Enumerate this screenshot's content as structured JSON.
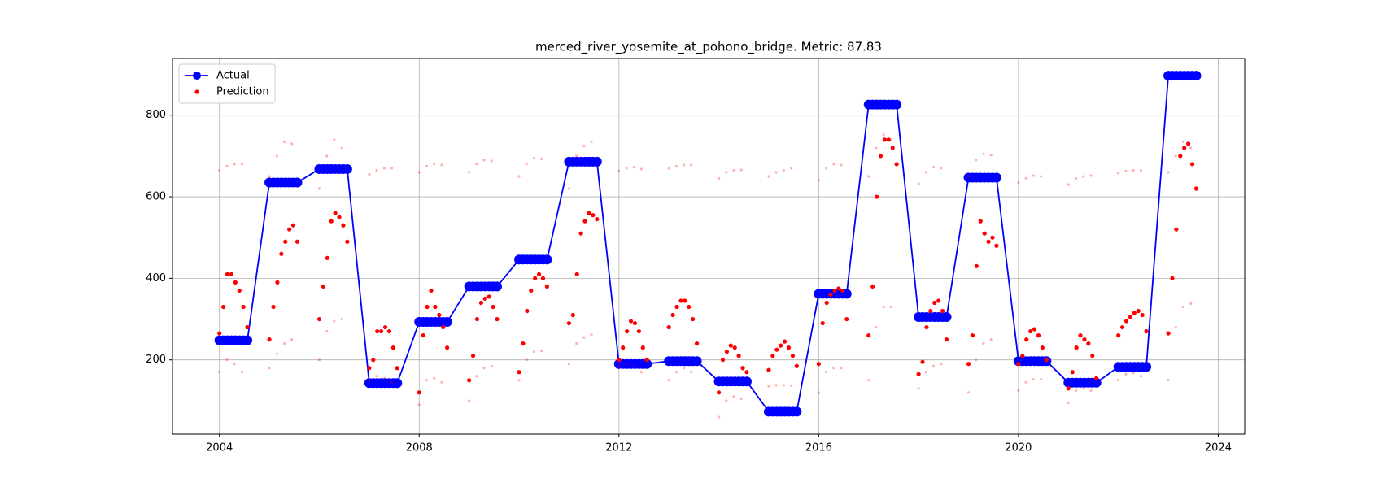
{
  "chart_data": {
    "type": "scatter-line",
    "title": "merced_river_yosemite_at_pohono_bridge. Metric: 87.83",
    "xlim": [
      2003.06,
      2024.53
    ],
    "xticks": [
      2004,
      2008,
      2012,
      2016,
      2020,
      2024
    ],
    "ylim": [
      18,
      939
    ],
    "yticks": [
      200,
      400,
      600,
      800
    ],
    "grid": true,
    "legend": "upper left",
    "series": [
      {
        "name": "Actual",
        "color": "#0000ff",
        "style": "line",
        "alpha": 1,
        "x": [
          2004,
          2004.08,
          2004.16,
          2004.24,
          2004.32,
          2004.4,
          2004.48,
          2004.56,
          2005,
          2005.08,
          2005.16,
          2005.24,
          2005.32,
          2005.4,
          2005.48,
          2005.56,
          2006,
          2006.08,
          2006.16,
          2006.24,
          2006.32,
          2006.4,
          2006.48,
          2006.56,
          2007,
          2007.08,
          2007.16,
          2007.24,
          2007.32,
          2007.4,
          2007.48,
          2007.56,
          2008,
          2008.08,
          2008.16,
          2008.24,
          2008.32,
          2008.4,
          2008.48,
          2008.56,
          2009,
          2009.08,
          2009.16,
          2009.24,
          2009.32,
          2009.4,
          2009.48,
          2009.56,
          2010,
          2010.08,
          2010.16,
          2010.24,
          2010.32,
          2010.4,
          2010.48,
          2010.56,
          2011,
          2011.08,
          2011.16,
          2011.24,
          2011.32,
          2011.4,
          2011.48,
          2011.56,
          2012,
          2012.08,
          2012.16,
          2012.24,
          2012.32,
          2012.4,
          2012.48,
          2012.56,
          2013,
          2013.08,
          2013.16,
          2013.24,
          2013.32,
          2013.4,
          2013.48,
          2013.56,
          2014,
          2014.08,
          2014.16,
          2014.24,
          2014.32,
          2014.4,
          2014.48,
          2014.56,
          2015,
          2015.08,
          2015.16,
          2015.24,
          2015.32,
          2015.4,
          2015.48,
          2015.56,
          2016,
          2016.08,
          2016.16,
          2016.24,
          2016.32,
          2016.4,
          2016.48,
          2016.56,
          2017,
          2017.08,
          2017.16,
          2017.24,
          2017.32,
          2017.4,
          2017.48,
          2017.56,
          2018,
          2018.08,
          2018.16,
          2018.24,
          2018.32,
          2018.4,
          2018.48,
          2018.56,
          2019,
          2019.08,
          2019.16,
          2019.24,
          2019.32,
          2019.4,
          2019.48,
          2019.56,
          2020,
          2020.08,
          2020.16,
          2020.24,
          2020.32,
          2020.4,
          2020.48,
          2020.56,
          2021,
          2021.08,
          2021.16,
          2021.24,
          2021.32,
          2021.4,
          2021.48,
          2021.56,
          2022,
          2022.08,
          2022.16,
          2022.24,
          2022.32,
          2022.4,
          2022.48,
          2022.56,
          2023,
          2023.08,
          2023.16,
          2023.24,
          2023.32,
          2023.4,
          2023.48,
          2023.56
        ],
        "values": [
          248,
          248,
          248,
          248,
          248,
          248,
          248,
          248,
          635,
          635,
          635,
          635,
          635,
          635,
          635,
          635,
          668,
          668,
          668,
          668,
          668,
          668,
          668,
          668,
          143,
          143,
          143,
          143,
          143,
          143,
          143,
          143,
          293,
          293,
          293,
          293,
          293,
          293,
          293,
          293,
          380,
          380,
          380,
          380,
          380,
          380,
          380,
          380,
          446,
          446,
          446,
          446,
          446,
          446,
          446,
          446,
          686,
          686,
          686,
          686,
          686,
          686,
          686,
          686,
          190,
          190,
          190,
          190,
          190,
          190,
          190,
          190,
          197,
          197,
          197,
          197,
          197,
          197,
          197,
          197,
          147,
          147,
          147,
          147,
          147,
          147,
          147,
          147,
          73,
          73,
          73,
          73,
          73,
          73,
          73,
          73,
          362,
          362,
          362,
          362,
          362,
          362,
          362,
          362,
          826,
          826,
          826,
          826,
          826,
          826,
          826,
          826,
          305,
          305,
          305,
          305,
          305,
          305,
          305,
          305,
          647,
          647,
          647,
          647,
          647,
          647,
          647,
          647,
          197,
          197,
          197,
          197,
          197,
          197,
          197,
          197,
          144,
          144,
          144,
          144,
          144,
          144,
          144,
          144,
          183,
          183,
          183,
          183,
          183,
          183,
          183,
          183,
          897,
          897,
          897,
          897,
          897,
          897,
          897,
          897
        ]
      },
      {
        "name": "Prediction",
        "color": "#ff0000",
        "style": "dot",
        "alpha": 1,
        "x": [
          2004,
          2004.08,
          2004.16,
          2004.24,
          2004.32,
          2004.4,
          2004.48,
          2004.56,
          2005,
          2005.08,
          2005.16,
          2005.24,
          2005.32,
          2005.4,
          2005.48,
          2005.56,
          2006,
          2006.08,
          2006.16,
          2006.24,
          2006.32,
          2006.4,
          2006.48,
          2006.56,
          2007,
          2007.08,
          2007.16,
          2007.24,
          2007.32,
          2007.4,
          2007.48,
          2007.56,
          2008,
          2008.08,
          2008.16,
          2008.24,
          2008.32,
          2008.4,
          2008.48,
          2008.56,
          2009,
          2009.08,
          2009.16,
          2009.24,
          2009.32,
          2009.4,
          2009.48,
          2009.56,
          2010,
          2010.08,
          2010.16,
          2010.24,
          2010.32,
          2010.4,
          2010.48,
          2010.56,
          2011,
          2011.08,
          2011.16,
          2011.24,
          2011.32,
          2011.4,
          2011.48,
          2011.56,
          2012,
          2012.08,
          2012.16,
          2012.24,
          2012.32,
          2012.4,
          2012.48,
          2012.56,
          2013,
          2013.08,
          2013.16,
          2013.24,
          2013.32,
          2013.4,
          2013.48,
          2013.56,
          2014,
          2014.08,
          2014.16,
          2014.24,
          2014.32,
          2014.4,
          2014.48,
          2014.56,
          2015,
          2015.08,
          2015.16,
          2015.24,
          2015.32,
          2015.4,
          2015.48,
          2015.56,
          2016,
          2016.08,
          2016.16,
          2016.24,
          2016.32,
          2016.4,
          2016.48,
          2016.56,
          2017,
          2017.08,
          2017.16,
          2017.24,
          2017.32,
          2017.4,
          2017.48,
          2017.56,
          2018,
          2018.08,
          2018.16,
          2018.24,
          2018.32,
          2018.4,
          2018.48,
          2018.56,
          2019,
          2019.08,
          2019.16,
          2019.24,
          2019.32,
          2019.4,
          2019.48,
          2019.56,
          2020,
          2020.08,
          2020.16,
          2020.24,
          2020.32,
          2020.4,
          2020.48,
          2020.56,
          2021,
          2021.08,
          2021.16,
          2021.24,
          2021.32,
          2021.4,
          2021.48,
          2021.56,
          2022,
          2022.08,
          2022.16,
          2022.24,
          2022.32,
          2022.4,
          2022.48,
          2022.56,
          2023,
          2023.08,
          2023.16,
          2023.24,
          2023.32,
          2023.4,
          2023.48,
          2023.56
        ],
        "values": [
          265,
          330,
          410,
          410,
          390,
          370,
          330,
          280,
          250,
          330,
          390,
          460,
          490,
          520,
          530,
          490,
          300,
          380,
          450,
          540,
          560,
          550,
          530,
          490,
          180,
          200,
          270,
          270,
          280,
          270,
          230,
          180,
          120,
          260,
          330,
          370,
          330,
          310,
          280,
          230,
          150,
          210,
          300,
          340,
          350,
          355,
          330,
          300,
          170,
          240,
          320,
          370,
          400,
          410,
          400,
          380,
          290,
          310,
          410,
          510,
          540,
          560,
          555,
          545,
          200,
          230,
          270,
          295,
          290,
          270,
          230,
          200,
          280,
          310,
          330,
          345,
          345,
          330,
          300,
          240,
          120,
          200,
          220,
          235,
          230,
          210,
          180,
          170,
          175,
          210,
          225,
          235,
          245,
          230,
          210,
          185,
          190,
          290,
          340,
          360,
          370,
          375,
          370,
          300,
          260,
          380,
          600,
          700,
          740,
          740,
          720,
          680,
          165,
          195,
          280,
          320,
          340,
          345,
          320,
          250,
          190,
          260,
          430,
          540,
          510,
          490,
          500,
          480,
          190,
          210,
          250,
          270,
          275,
          260,
          230,
          200,
          130,
          170,
          230,
          260,
          250,
          240,
          210,
          155,
          260,
          280,
          295,
          305,
          315,
          320,
          310,
          270,
          265,
          400,
          520,
          700,
          720,
          730,
          680,
          620
        ]
      },
      {
        "color": "#ff0000",
        "style": "faint",
        "alpha": 0.3,
        "x": [
          2004,
          2004.15,
          2004.3,
          2004.45,
          2005,
          2005.15,
          2005.3,
          2005.45,
          2006,
          2006.15,
          2006.3,
          2006.45,
          2007,
          2007.15,
          2007.3,
          2007.45,
          2008,
          2008.15,
          2008.3,
          2008.45,
          2009,
          2009.15,
          2009.3,
          2009.45,
          2010,
          2010.15,
          2010.3,
          2010.45,
          2011,
          2011.15,
          2011.3,
          2011.45,
          2012,
          2012.15,
          2012.3,
          2012.45,
          2013,
          2013.15,
          2013.3,
          2013.45,
          2014,
          2014.15,
          2014.3,
          2014.45,
          2015,
          2015.15,
          2015.3,
          2015.45,
          2016,
          2016.15,
          2016.3,
          2016.45,
          2017,
          2017.15,
          2017.3,
          2017.45,
          2018,
          2018.15,
          2018.3,
          2018.45,
          2019,
          2019.15,
          2019.3,
          2019.45,
          2020,
          2020.15,
          2020.3,
          2020.45,
          2021,
          2021.15,
          2021.3,
          2021.45,
          2022,
          2022.15,
          2022.3,
          2022.45,
          2023,
          2023.15,
          2023.3,
          2023.45
        ],
        "values": [
          665,
          675,
          680,
          680,
          650,
          700,
          735,
          730,
          620,
          700,
          740,
          720,
          655,
          665,
          670,
          670,
          660,
          675,
          680,
          678,
          660,
          680,
          690,
          688,
          650,
          680,
          695,
          693,
          620,
          700,
          725,
          735,
          663,
          670,
          673,
          668,
          670,
          675,
          678,
          678,
          645,
          660,
          665,
          666,
          650,
          660,
          665,
          670,
          640,
          670,
          680,
          678,
          650,
          720,
          752,
          740,
          632,
          660,
          673,
          670,
          650,
          690,
          705,
          702,
          635,
          645,
          652,
          650,
          630,
          645,
          650,
          652,
          658,
          663,
          665,
          665,
          660,
          700,
          735,
          720
        ]
      },
      {
        "color": "#ff0000",
        "style": "faint",
        "alpha": 0.3,
        "x": [
          2004,
          2004.15,
          2004.3,
          2004.45,
          2005,
          2005.15,
          2005.3,
          2005.45,
          2006,
          2006.15,
          2006.3,
          2006.45,
          2007,
          2007.15,
          2007.3,
          2007.45,
          2008,
          2008.15,
          2008.3,
          2008.45,
          2009,
          2009.15,
          2009.3,
          2009.45,
          2010,
          2010.15,
          2010.3,
          2010.45,
          2011,
          2011.15,
          2011.3,
          2011.45,
          2012,
          2012.15,
          2012.3,
          2012.45,
          2013,
          2013.15,
          2013.3,
          2013.45,
          2014,
          2014.15,
          2014.3,
          2014.45,
          2015,
          2015.15,
          2015.3,
          2015.45,
          2016,
          2016.15,
          2016.3,
          2016.45,
          2017,
          2017.15,
          2017.3,
          2017.45,
          2018,
          2018.15,
          2018.3,
          2018.45,
          2019,
          2019.15,
          2019.3,
          2019.45,
          2020,
          2020.15,
          2020.3,
          2020.45,
          2021,
          2021.15,
          2021.3,
          2021.45,
          2022,
          2022.15,
          2022.3,
          2022.45,
          2023,
          2023.15,
          2023.3,
          2023.45
        ],
        "values": [
          170,
          200,
          190,
          170,
          180,
          215,
          240,
          250,
          200,
          270,
          295,
          300,
          150,
          160,
          155,
          145,
          90,
          150,
          155,
          145,
          100,
          160,
          180,
          185,
          150,
          200,
          220,
          222,
          190,
          240,
          255,
          262,
          185,
          190,
          185,
          170,
          150,
          170,
          180,
          170,
          60,
          100,
          110,
          105,
          135,
          138,
          138,
          137,
          120,
          170,
          180,
          180,
          150,
          280,
          330,
          330,
          130,
          170,
          185,
          190,
          120,
          200,
          240,
          250,
          125,
          145,
          152,
          152,
          95,
          125,
          130,
          125,
          150,
          165,
          168,
          160,
          150,
          280,
          330,
          338
        ]
      }
    ]
  }
}
